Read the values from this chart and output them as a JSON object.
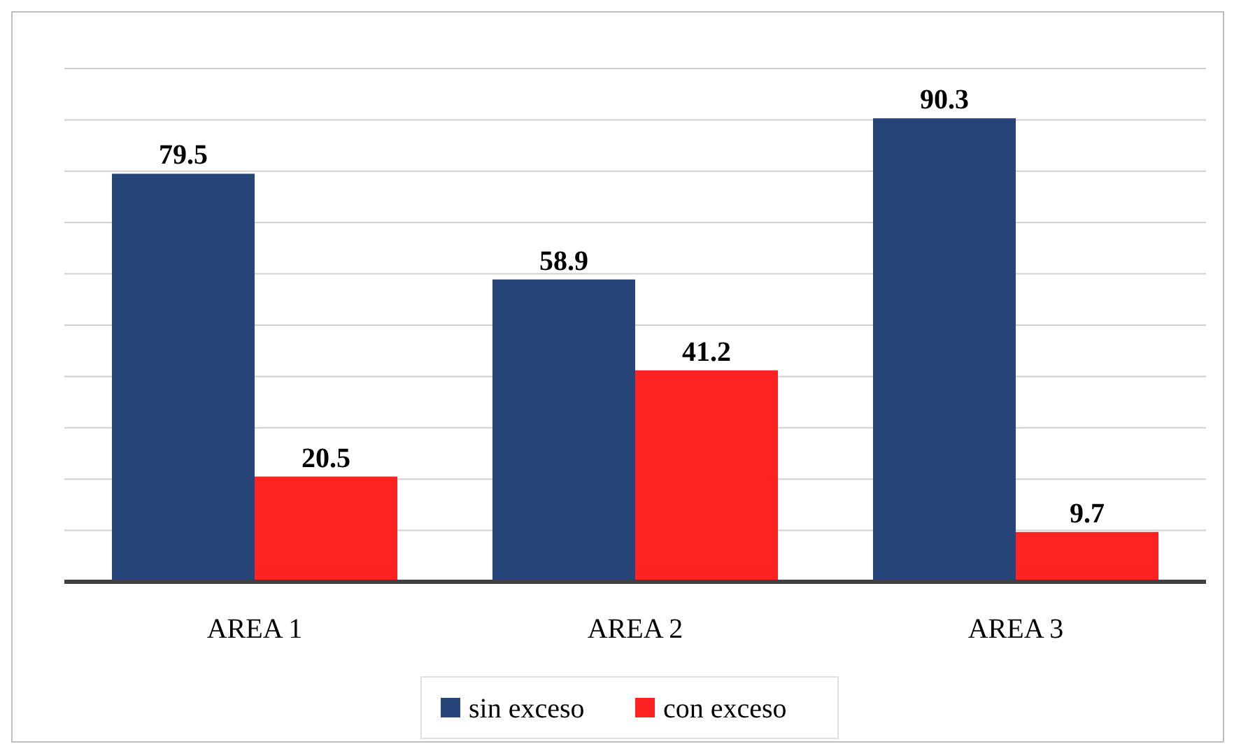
{
  "chart_data": {
    "type": "bar",
    "categories": [
      "AREA 1",
      "AREA 2",
      "AREA 3"
    ],
    "series": [
      {
        "name": "sin exceso",
        "color": "#264478",
        "values": [
          79.5,
          58.9,
          90.3
        ]
      },
      {
        "name": "con exceso",
        "color": "#ff2222",
        "values": [
          20.5,
          41.2,
          9.7
        ]
      }
    ],
    "ylim": [
      0,
      100
    ],
    "yticks": [
      {
        "value": 0,
        "label": null
      },
      {
        "value": 10,
        "label": null
      },
      {
        "value": 20,
        "label": null
      },
      {
        "value": 30,
        "label": null
      },
      {
        "value": 40,
        "label": null
      },
      {
        "value": 50,
        "label": null
      },
      {
        "value": 60,
        "label": null
      },
      {
        "value": 70,
        "label": null
      },
      {
        "value": 80,
        "label": null
      },
      {
        "value": 90,
        "label": null
      },
      {
        "value": 100,
        "label": null
      }
    ],
    "grid": "y",
    "tick_labels": "x",
    "data_labels": true,
    "legend": "bottom"
  }
}
